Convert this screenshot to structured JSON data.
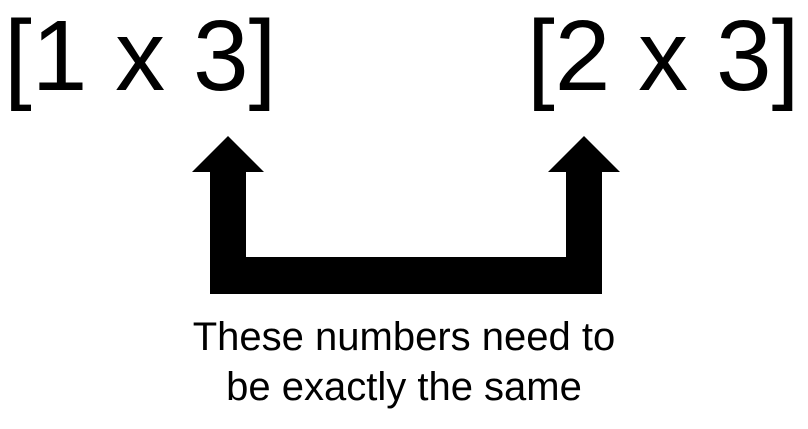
{
  "labels": {
    "left_dimension": "[1 x 3]",
    "right_dimension": "[2 x 3]"
  },
  "caption": {
    "line1": "These numbers need to",
    "line2": "be exactly the same"
  },
  "colors": {
    "ink": "#000000",
    "background": "#ffffff"
  },
  "icons": {
    "connector": "u-shaped-double-up-arrow"
  }
}
